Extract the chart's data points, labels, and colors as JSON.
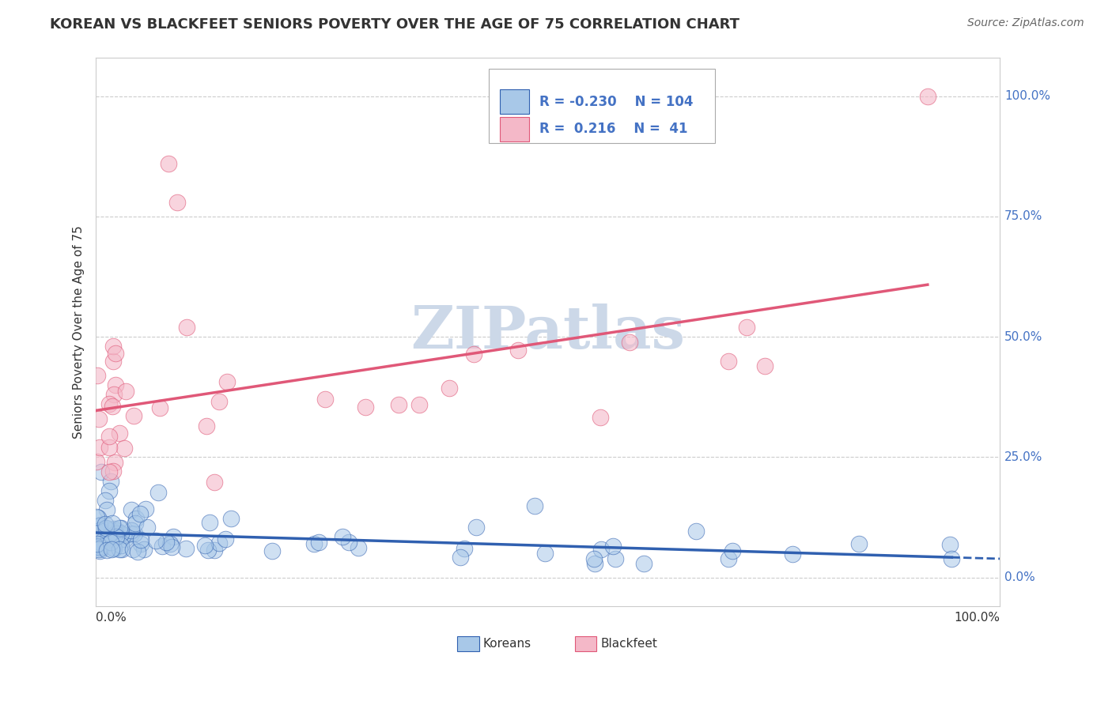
{
  "title": "KOREAN VS BLACKFEET SENIORS POVERTY OVER THE AGE OF 75 CORRELATION CHART",
  "source": "Source: ZipAtlas.com",
  "ylabel": "Seniors Poverty Over the Age of 75",
  "koreans_R": "-0.230",
  "koreans_N": "104",
  "blackfeet_R": "0.216",
  "blackfeet_N": "41",
  "korean_color": "#a8c8e8",
  "blackfeet_color": "#f4b8c8",
  "trend_korean_color": "#3060b0",
  "trend_blackfeet_color": "#e05878",
  "background_color": "#ffffff",
  "watermark_color": "#ccd8e8",
  "grid_color": "#cccccc",
  "right_tick_color": "#4472c4",
  "legend_text_color": "#4472c4",
  "title_color": "#333333",
  "source_color": "#666666",
  "axis_label_color": "#333333"
}
